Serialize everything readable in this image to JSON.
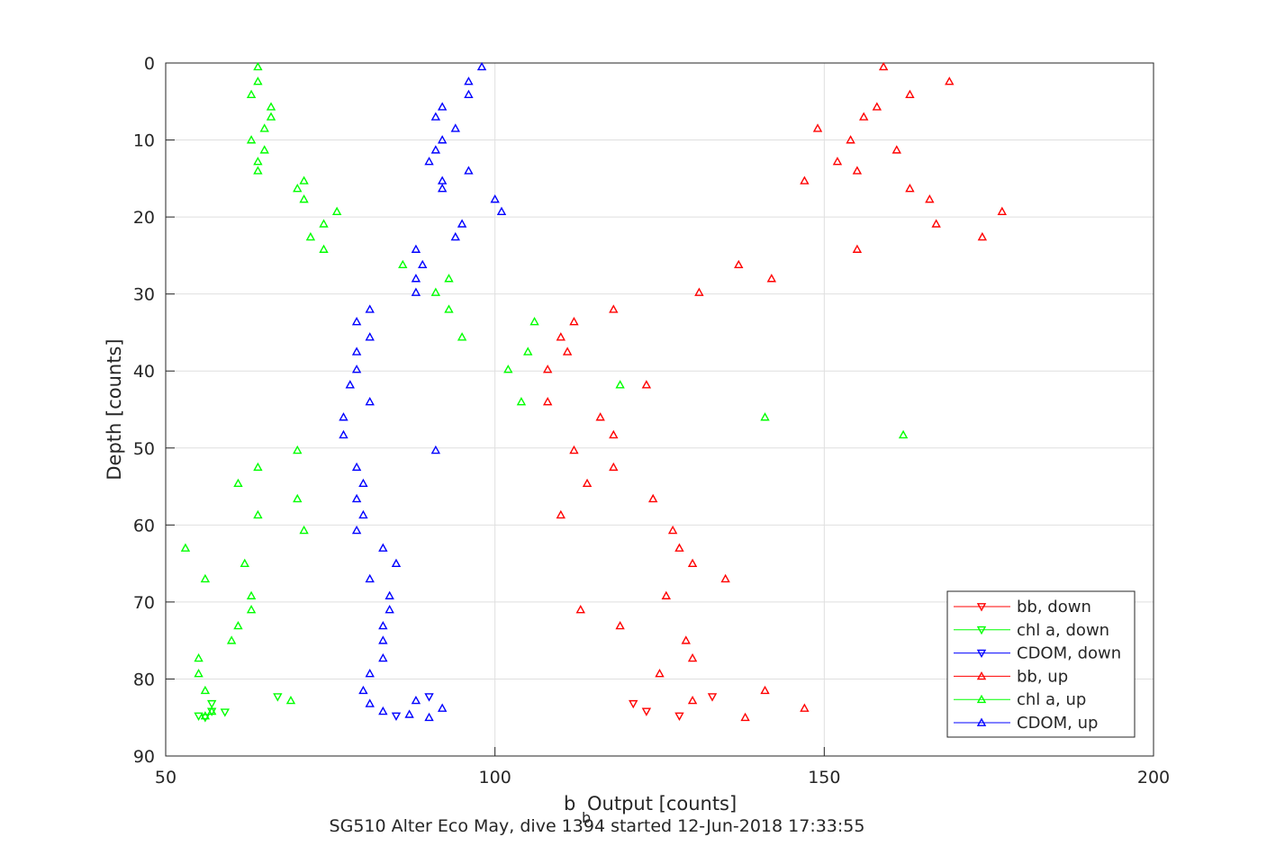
{
  "chart_data": {
    "type": "scatter",
    "xlabel_main": "b",
    "xlabel_sub": "b",
    "xlabel_rest": " Output [counts]",
    "ylabel": "Depth [counts]",
    "caption": "SG510 Alter Eco May, dive 1394 started 12-Jun-2018 17:33:55",
    "xlim": [
      50,
      200
    ],
    "ylim": [
      0,
      90
    ],
    "y_reversed": true,
    "grid": true,
    "x_ticks": [
      50,
      100,
      150,
      200
    ],
    "y_ticks": [
      0,
      10,
      20,
      30,
      40,
      50,
      60,
      70,
      80,
      90
    ],
    "legend_position": "bottom-right",
    "series": [
      {
        "name": "bb, down",
        "color": "#ff0000",
        "marker": "triangle-down",
        "points": [
          [
            121,
            83.2
          ],
          [
            123,
            84.2
          ],
          [
            128,
            84.8
          ],
          [
            133,
            82.3
          ]
        ]
      },
      {
        "name": "chl a, down",
        "color": "#00ff00",
        "marker": "triangle-down",
        "points": [
          [
            55,
            84.8
          ],
          [
            56,
            85.0
          ],
          [
            57,
            83.2
          ],
          [
            57,
            84.2
          ],
          [
            59,
            84.3
          ],
          [
            67,
            82.3
          ]
        ]
      },
      {
        "name": "CDOM, down",
        "color": "#0000ff",
        "marker": "triangle-down",
        "points": [
          [
            85,
            84.8
          ],
          [
            90,
            82.3
          ]
        ]
      },
      {
        "name": "bb, up",
        "color": "#ff0000",
        "marker": "triangle-up",
        "points": [
          [
            159,
            0.5
          ],
          [
            169,
            2.4
          ],
          [
            163,
            4.1
          ],
          [
            158,
            5.7
          ],
          [
            156,
            7.0
          ],
          [
            149,
            8.5
          ],
          [
            154,
            10.0
          ],
          [
            161,
            11.3
          ],
          [
            152,
            12.8
          ],
          [
            155,
            14.0
          ],
          [
            147,
            15.3
          ],
          [
            163,
            16.3
          ],
          [
            166,
            17.7
          ],
          [
            177,
            19.3
          ],
          [
            167,
            20.9
          ],
          [
            174,
            22.6
          ],
          [
            155,
            24.2
          ],
          [
            137,
            26.2
          ],
          [
            142,
            28.0
          ],
          [
            131,
            29.8
          ],
          [
            118,
            32.0
          ],
          [
            112,
            33.6
          ],
          [
            110,
            35.6
          ],
          [
            111,
            37.5
          ],
          [
            108,
            39.8
          ],
          [
            123,
            41.8
          ],
          [
            108,
            44.0
          ],
          [
            116,
            46.0
          ],
          [
            118,
            48.3
          ],
          [
            112,
            50.3
          ],
          [
            118,
            52.5
          ],
          [
            114,
            54.6
          ],
          [
            124,
            56.6
          ],
          [
            110,
            58.7
          ],
          [
            127,
            60.7
          ],
          [
            128,
            63.0
          ],
          [
            130,
            65.0
          ],
          [
            135,
            67.0
          ],
          [
            126,
            69.2
          ],
          [
            113,
            71.0
          ],
          [
            119,
            73.1
          ],
          [
            129,
            75.0
          ],
          [
            130,
            77.3
          ],
          [
            125,
            79.3
          ],
          [
            141,
            81.5
          ],
          [
            130,
            82.8
          ],
          [
            147,
            83.8
          ],
          [
            138,
            85.0
          ]
        ]
      },
      {
        "name": "chl a, up",
        "color": "#00ff00",
        "marker": "triangle-up",
        "points": [
          [
            64,
            0.5
          ],
          [
            64,
            2.4
          ],
          [
            63,
            4.1
          ],
          [
            66,
            5.7
          ],
          [
            66,
            7.0
          ],
          [
            65,
            8.5
          ],
          [
            63,
            10.0
          ],
          [
            65,
            11.3
          ],
          [
            64,
            12.8
          ],
          [
            64,
            14.0
          ],
          [
            71,
            15.3
          ],
          [
            70,
            16.3
          ],
          [
            71,
            17.7
          ],
          [
            76,
            19.3
          ],
          [
            74,
            20.9
          ],
          [
            72,
            22.6
          ],
          [
            74,
            24.2
          ],
          [
            86,
            26.2
          ],
          [
            93,
            28.0
          ],
          [
            91,
            29.8
          ],
          [
            93,
            32.0
          ],
          [
            106,
            33.6
          ],
          [
            95,
            35.6
          ],
          [
            105,
            37.5
          ],
          [
            102,
            39.8
          ],
          [
            119,
            41.8
          ],
          [
            104,
            44.0
          ],
          [
            141,
            46.0
          ],
          [
            162,
            48.3
          ],
          [
            70,
            50.3
          ],
          [
            64,
            52.5
          ],
          [
            61,
            54.6
          ],
          [
            70,
            56.6
          ],
          [
            64,
            58.7
          ],
          [
            71,
            60.7
          ],
          [
            53,
            63.0
          ],
          [
            62,
            65.0
          ],
          [
            56,
            67.0
          ],
          [
            63,
            69.2
          ],
          [
            63,
            71.0
          ],
          [
            61,
            73.1
          ],
          [
            60,
            75.0
          ],
          [
            55,
            77.3
          ],
          [
            55,
            79.3
          ],
          [
            56,
            81.5
          ],
          [
            69,
            82.8
          ],
          [
            57,
            84.2
          ],
          [
            56,
            84.8
          ]
        ]
      },
      {
        "name": "CDOM, up",
        "color": "#0000ff",
        "marker": "triangle-up",
        "points": [
          [
            98,
            0.5
          ],
          [
            96,
            2.4
          ],
          [
            96,
            4.1
          ],
          [
            92,
            5.7
          ],
          [
            91,
            7.0
          ],
          [
            94,
            8.5
          ],
          [
            92,
            10.0
          ],
          [
            91,
            11.3
          ],
          [
            90,
            12.8
          ],
          [
            96,
            14.0
          ],
          [
            92,
            15.3
          ],
          [
            92,
            16.3
          ],
          [
            100,
            17.7
          ],
          [
            101,
            19.3
          ],
          [
            95,
            20.9
          ],
          [
            94,
            22.6
          ],
          [
            88,
            24.2
          ],
          [
            89,
            26.2
          ],
          [
            88,
            28.0
          ],
          [
            88,
            29.8
          ],
          [
            81,
            32.0
          ],
          [
            79,
            33.6
          ],
          [
            81,
            35.6
          ],
          [
            79,
            37.5
          ],
          [
            79,
            39.8
          ],
          [
            78,
            41.8
          ],
          [
            81,
            44.0
          ],
          [
            77,
            46.0
          ],
          [
            77,
            48.3
          ],
          [
            91,
            50.3
          ],
          [
            79,
            52.5
          ],
          [
            80,
            54.6
          ],
          [
            79,
            56.6
          ],
          [
            80,
            58.7
          ],
          [
            79,
            60.7
          ],
          [
            83,
            63.0
          ],
          [
            85,
            65.0
          ],
          [
            81,
            67.0
          ],
          [
            84,
            69.2
          ],
          [
            84,
            71.0
          ],
          [
            83,
            73.1
          ],
          [
            83,
            75.0
          ],
          [
            83,
            77.3
          ],
          [
            81,
            79.3
          ],
          [
            80,
            81.5
          ],
          [
            81,
            83.2
          ],
          [
            83,
            84.2
          ],
          [
            87,
            84.6
          ],
          [
            88,
            82.8
          ],
          [
            90,
            85.0
          ],
          [
            92,
            83.8
          ]
        ]
      }
    ]
  }
}
